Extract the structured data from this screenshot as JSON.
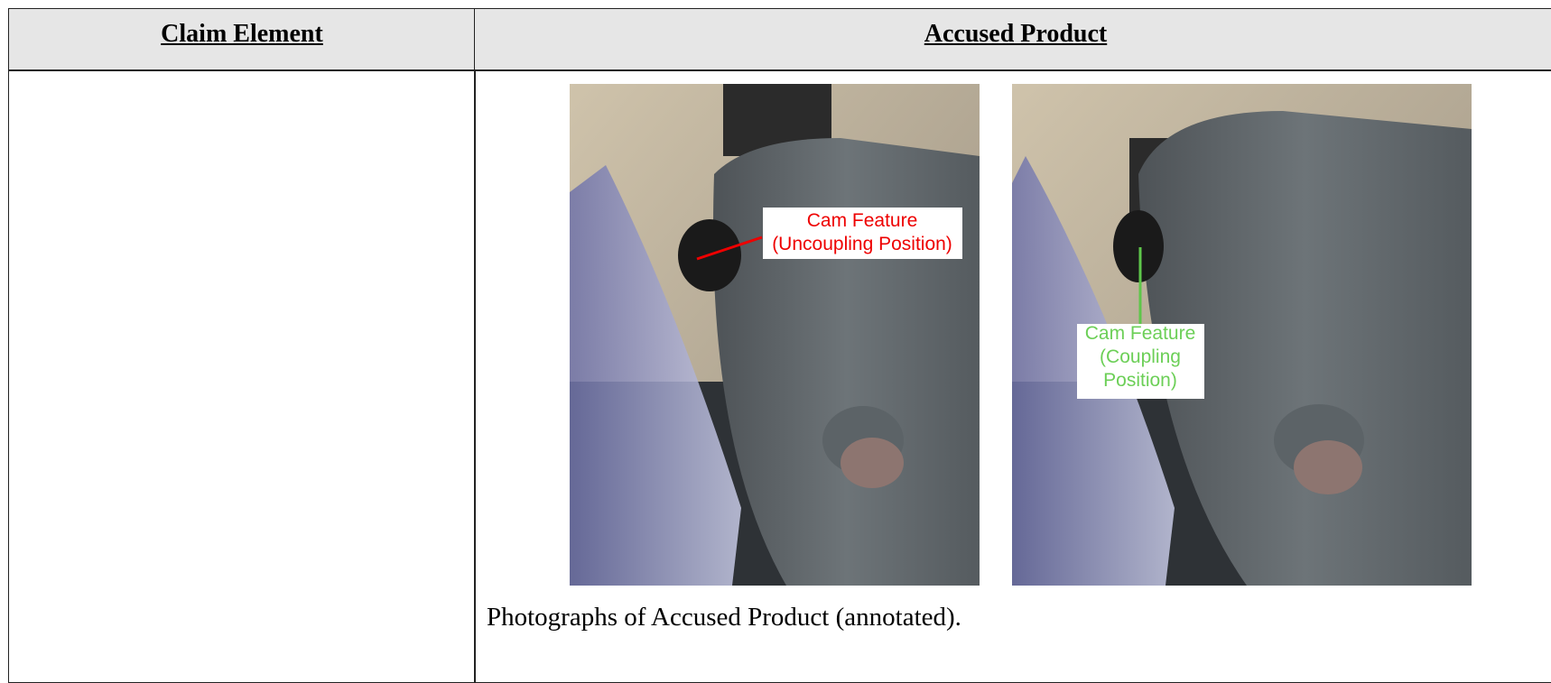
{
  "table": {
    "header": [
      "Claim Element",
      "Accused Product"
    ],
    "rows": [
      {
        "photos": [
          {
            "annotation": [
              "Cam Feature",
              "(Uncoupling Position)"
            ]
          },
          {
            "annotation": [
              "Cam Feature",
              "(Coupling",
              "Position)"
            ]
          }
        ],
        "caption": "Photographs of Accused Product (annotated)."
      }
    ]
  }
}
